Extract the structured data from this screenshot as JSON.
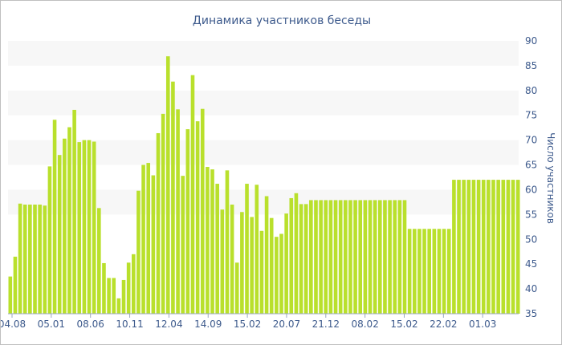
{
  "chart_data": {
    "type": "bar",
    "title": "Динамика участников беседы",
    "xlabel": "",
    "ylabel": "Число участников",
    "ylim": [
      35,
      90
    ],
    "y_ticks": [
      35,
      40,
      45,
      50,
      55,
      60,
      65,
      70,
      75,
      80,
      85,
      90
    ],
    "y_axis_position": "right",
    "x_tick_labels": [
      "04.08",
      "05.01",
      "08.06",
      "10.11",
      "12.04",
      "14.09",
      "15.02",
      "20.07",
      "21.12",
      "08.02",
      "15.02",
      "22.02",
      "01.03"
    ],
    "alternating_bands": true,
    "bar_color": "#b9e02c",
    "band_color": "#f7f7f7",
    "text_color": "#3d5a8c",
    "values": [
      42.5,
      46.5,
      57.2,
      57.0,
      57.0,
      57.0,
      57.0,
      56.8,
      64.7,
      74.1,
      67.0,
      70.3,
      72.6,
      76.1,
      69.6,
      70.0,
      70.0,
      69.7,
      56.3,
      45.2,
      42.2,
      42.2,
      38.1,
      41.8,
      45.3,
      47.0,
      59.8,
      65.0,
      65.4,
      62.9,
      71.4,
      75.3,
      86.9,
      81.8,
      76.2,
      62.8,
      72.2,
      83.1,
      73.8,
      76.3,
      64.6,
      64.1,
      61.2,
      56.0,
      63.9,
      57.0,
      45.3,
      55.5,
      61.2,
      54.5,
      61.0,
      51.7,
      58.7,
      54.3,
      50.5,
      51.1,
      55.2,
      58.3,
      59.3,
      57.1,
      57.1,
      57.9,
      57.9,
      57.9,
      57.9,
      57.9,
      57.9,
      57.9,
      57.9,
      57.9,
      57.9,
      57.9,
      57.9,
      57.9,
      57.9,
      57.9,
      57.9,
      57.9,
      57.9,
      57.9,
      57.9,
      52.1,
      52.1,
      52.1,
      52.1,
      52.1,
      52.1,
      52.1,
      52.1,
      52.1,
      62.0,
      62.0,
      62.0,
      62.0,
      62.0,
      62.0,
      62.0,
      62.0,
      62.0,
      62.0,
      62.0,
      62.0,
      62.0,
      62.0
    ]
  }
}
